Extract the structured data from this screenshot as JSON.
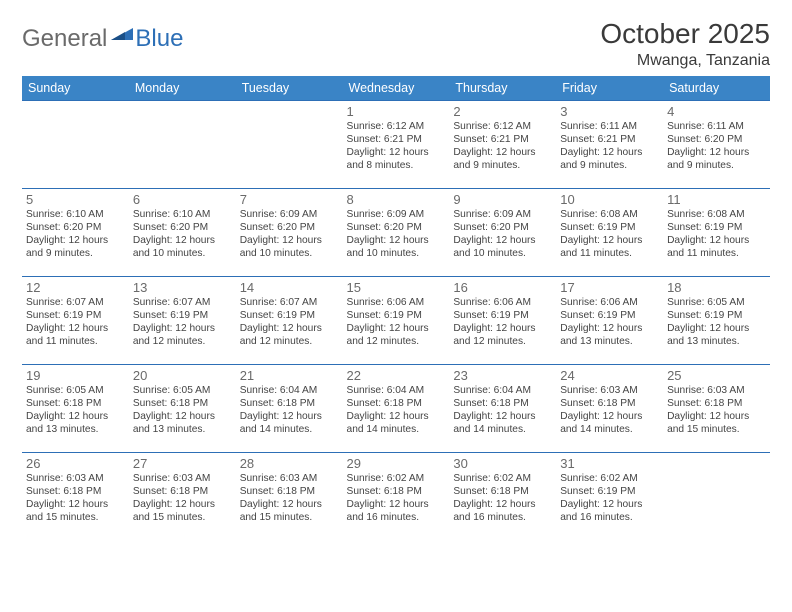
{
  "logo": {
    "text1": "General",
    "text2": "Blue"
  },
  "title": "October 2025",
  "location": "Mwanga, Tanzania",
  "colors": {
    "header_bg": "#3a84c6",
    "border": "#2d6fb6",
    "logo_gray": "#6a6a6a",
    "logo_blue": "#2d6fb6",
    "title_color": "#3a3a3a",
    "daynum_color": "#6a6a6a",
    "text_color": "#444444"
  },
  "day_headers": [
    "Sunday",
    "Monday",
    "Tuesday",
    "Wednesday",
    "Thursday",
    "Friday",
    "Saturday"
  ],
  "weeks": [
    [
      {
        "n": "",
        "sr": "",
        "ss": "",
        "dl": ""
      },
      {
        "n": "",
        "sr": "",
        "ss": "",
        "dl": ""
      },
      {
        "n": "",
        "sr": "",
        "ss": "",
        "dl": ""
      },
      {
        "n": "1",
        "sr": "Sunrise: 6:12 AM",
        "ss": "Sunset: 6:21 PM",
        "dl": "Daylight: 12 hours and 8 minutes."
      },
      {
        "n": "2",
        "sr": "Sunrise: 6:12 AM",
        "ss": "Sunset: 6:21 PM",
        "dl": "Daylight: 12 hours and 9 minutes."
      },
      {
        "n": "3",
        "sr": "Sunrise: 6:11 AM",
        "ss": "Sunset: 6:21 PM",
        "dl": "Daylight: 12 hours and 9 minutes."
      },
      {
        "n": "4",
        "sr": "Sunrise: 6:11 AM",
        "ss": "Sunset: 6:20 PM",
        "dl": "Daylight: 12 hours and 9 minutes."
      }
    ],
    [
      {
        "n": "5",
        "sr": "Sunrise: 6:10 AM",
        "ss": "Sunset: 6:20 PM",
        "dl": "Daylight: 12 hours and 9 minutes."
      },
      {
        "n": "6",
        "sr": "Sunrise: 6:10 AM",
        "ss": "Sunset: 6:20 PM",
        "dl": "Daylight: 12 hours and 10 minutes."
      },
      {
        "n": "7",
        "sr": "Sunrise: 6:09 AM",
        "ss": "Sunset: 6:20 PM",
        "dl": "Daylight: 12 hours and 10 minutes."
      },
      {
        "n": "8",
        "sr": "Sunrise: 6:09 AM",
        "ss": "Sunset: 6:20 PM",
        "dl": "Daylight: 12 hours and 10 minutes."
      },
      {
        "n": "9",
        "sr": "Sunrise: 6:09 AM",
        "ss": "Sunset: 6:20 PM",
        "dl": "Daylight: 12 hours and 10 minutes."
      },
      {
        "n": "10",
        "sr": "Sunrise: 6:08 AM",
        "ss": "Sunset: 6:19 PM",
        "dl": "Daylight: 12 hours and 11 minutes."
      },
      {
        "n": "11",
        "sr": "Sunrise: 6:08 AM",
        "ss": "Sunset: 6:19 PM",
        "dl": "Daylight: 12 hours and 11 minutes."
      }
    ],
    [
      {
        "n": "12",
        "sr": "Sunrise: 6:07 AM",
        "ss": "Sunset: 6:19 PM",
        "dl": "Daylight: 12 hours and 11 minutes."
      },
      {
        "n": "13",
        "sr": "Sunrise: 6:07 AM",
        "ss": "Sunset: 6:19 PM",
        "dl": "Daylight: 12 hours and 12 minutes."
      },
      {
        "n": "14",
        "sr": "Sunrise: 6:07 AM",
        "ss": "Sunset: 6:19 PM",
        "dl": "Daylight: 12 hours and 12 minutes."
      },
      {
        "n": "15",
        "sr": "Sunrise: 6:06 AM",
        "ss": "Sunset: 6:19 PM",
        "dl": "Daylight: 12 hours and 12 minutes."
      },
      {
        "n": "16",
        "sr": "Sunrise: 6:06 AM",
        "ss": "Sunset: 6:19 PM",
        "dl": "Daylight: 12 hours and 12 minutes."
      },
      {
        "n": "17",
        "sr": "Sunrise: 6:06 AM",
        "ss": "Sunset: 6:19 PM",
        "dl": "Daylight: 12 hours and 13 minutes."
      },
      {
        "n": "18",
        "sr": "Sunrise: 6:05 AM",
        "ss": "Sunset: 6:19 PM",
        "dl": "Daylight: 12 hours and 13 minutes."
      }
    ],
    [
      {
        "n": "19",
        "sr": "Sunrise: 6:05 AM",
        "ss": "Sunset: 6:18 PM",
        "dl": "Daylight: 12 hours and 13 minutes."
      },
      {
        "n": "20",
        "sr": "Sunrise: 6:05 AM",
        "ss": "Sunset: 6:18 PM",
        "dl": "Daylight: 12 hours and 13 minutes."
      },
      {
        "n": "21",
        "sr": "Sunrise: 6:04 AM",
        "ss": "Sunset: 6:18 PM",
        "dl": "Daylight: 12 hours and 14 minutes."
      },
      {
        "n": "22",
        "sr": "Sunrise: 6:04 AM",
        "ss": "Sunset: 6:18 PM",
        "dl": "Daylight: 12 hours and 14 minutes."
      },
      {
        "n": "23",
        "sr": "Sunrise: 6:04 AM",
        "ss": "Sunset: 6:18 PM",
        "dl": "Daylight: 12 hours and 14 minutes."
      },
      {
        "n": "24",
        "sr": "Sunrise: 6:03 AM",
        "ss": "Sunset: 6:18 PM",
        "dl": "Daylight: 12 hours and 14 minutes."
      },
      {
        "n": "25",
        "sr": "Sunrise: 6:03 AM",
        "ss": "Sunset: 6:18 PM",
        "dl": "Daylight: 12 hours and 15 minutes."
      }
    ],
    [
      {
        "n": "26",
        "sr": "Sunrise: 6:03 AM",
        "ss": "Sunset: 6:18 PM",
        "dl": "Daylight: 12 hours and 15 minutes."
      },
      {
        "n": "27",
        "sr": "Sunrise: 6:03 AM",
        "ss": "Sunset: 6:18 PM",
        "dl": "Daylight: 12 hours and 15 minutes."
      },
      {
        "n": "28",
        "sr": "Sunrise: 6:03 AM",
        "ss": "Sunset: 6:18 PM",
        "dl": "Daylight: 12 hours and 15 minutes."
      },
      {
        "n": "29",
        "sr": "Sunrise: 6:02 AM",
        "ss": "Sunset: 6:18 PM",
        "dl": "Daylight: 12 hours and 16 minutes."
      },
      {
        "n": "30",
        "sr": "Sunrise: 6:02 AM",
        "ss": "Sunset: 6:18 PM",
        "dl": "Daylight: 12 hours and 16 minutes."
      },
      {
        "n": "31",
        "sr": "Sunrise: 6:02 AM",
        "ss": "Sunset: 6:19 PM",
        "dl": "Daylight: 12 hours and 16 minutes."
      },
      {
        "n": "",
        "sr": "",
        "ss": "",
        "dl": ""
      }
    ]
  ]
}
